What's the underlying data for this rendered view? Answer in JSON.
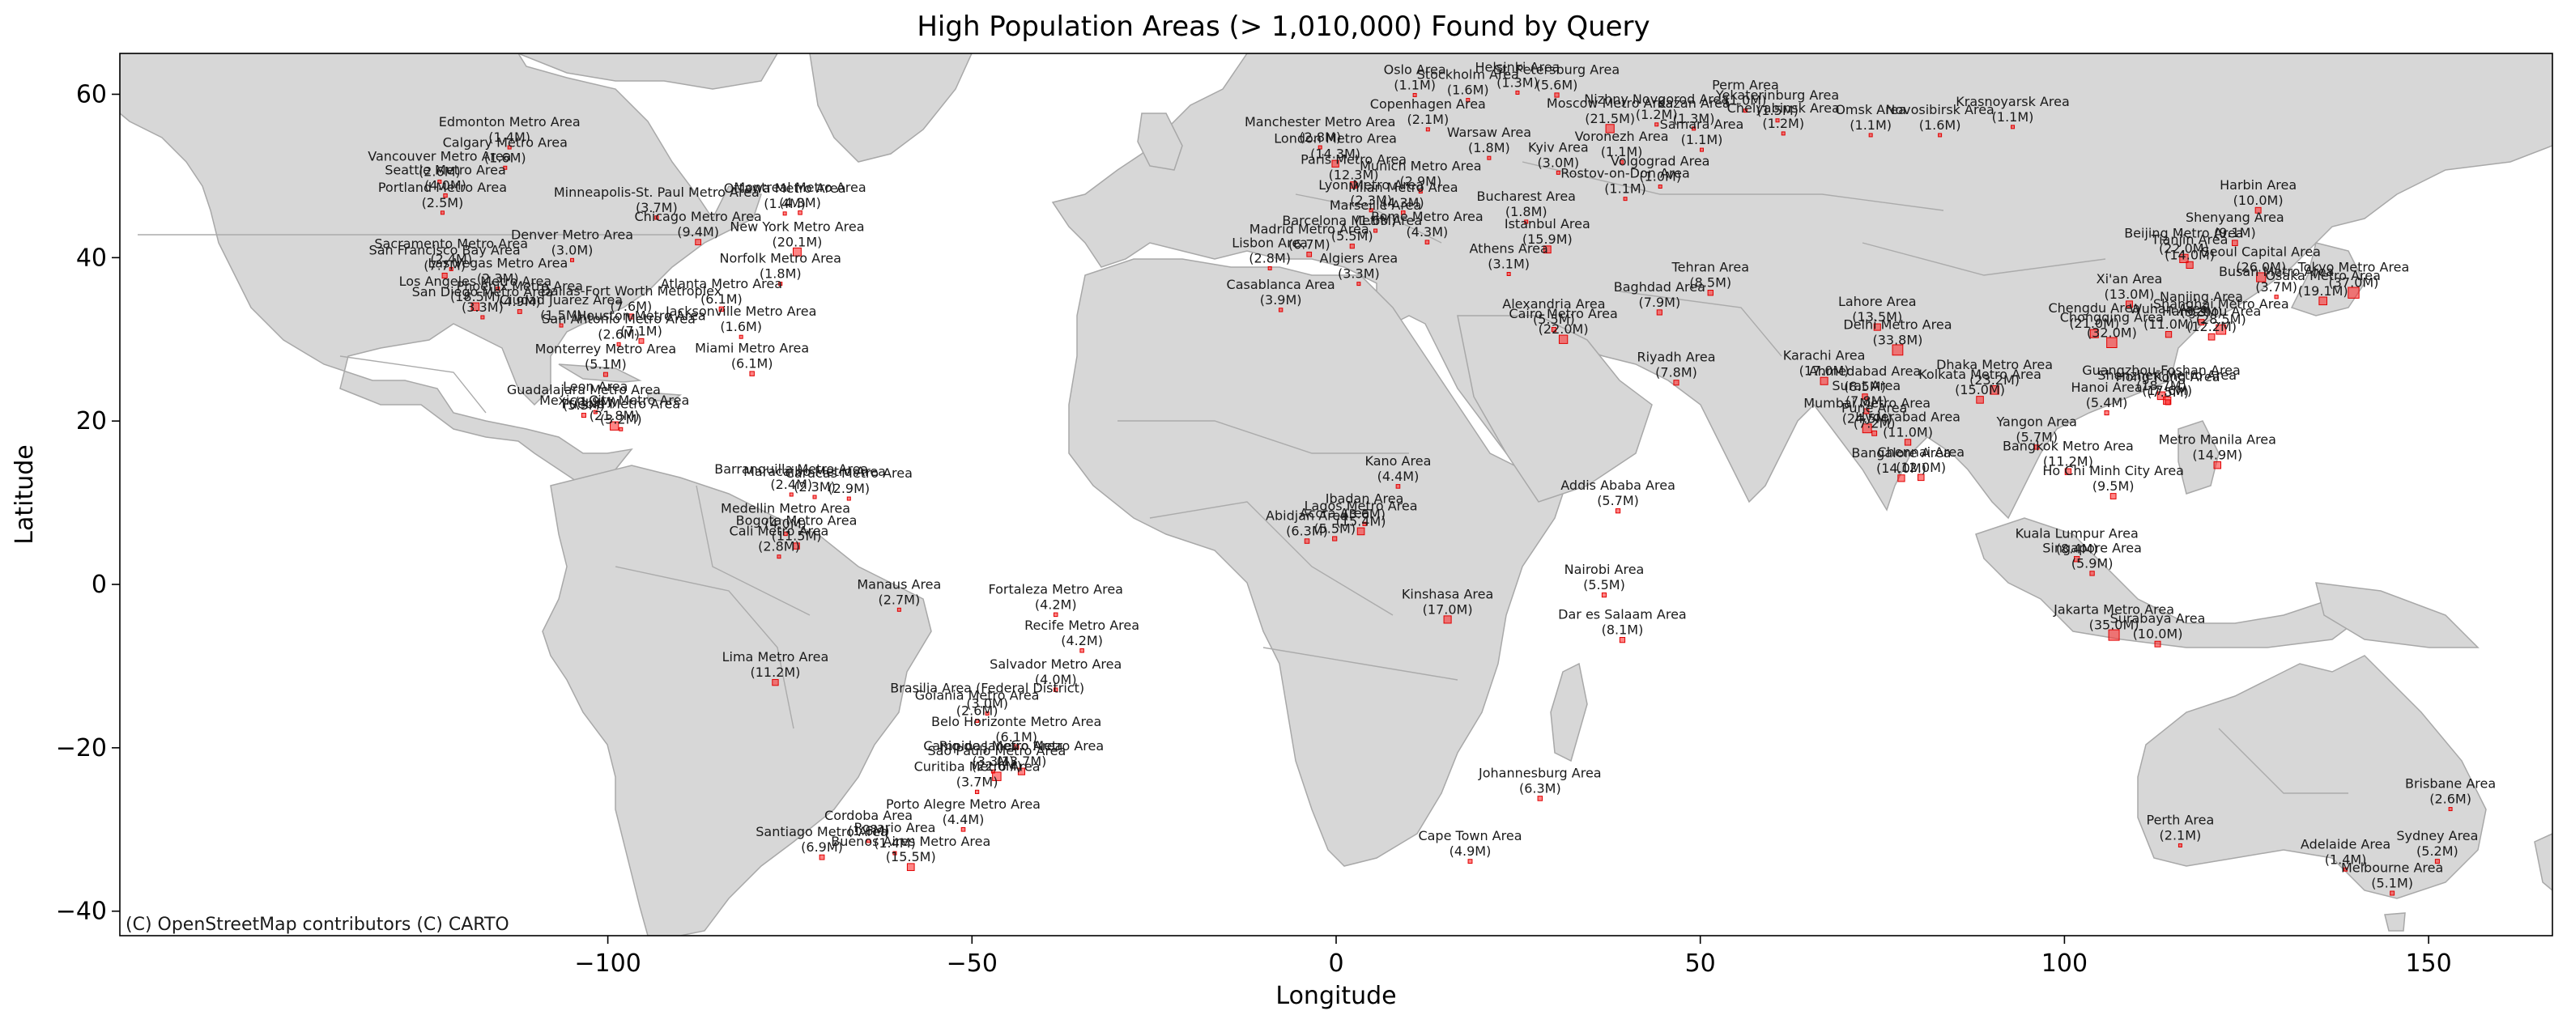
{
  "title": "High Population Areas (> 1,010,000) Found by Query",
  "xlabel": "Longitude",
  "ylabel": "Latitude",
  "attribution": "(C) OpenStreetMap contributors (C) CARTO",
  "xticks": [
    -100,
    -50,
    0,
    50,
    100,
    150
  ],
  "yticks": [
    -40,
    -20,
    0,
    20,
    40,
    60
  ],
  "xlim": [
    -167,
    167
  ],
  "ylim": [
    -43,
    65
  ],
  "colors": {
    "point": "#ff2020",
    "land": "#d7d7d7",
    "ocean": "#ffffff"
  },
  "chart_data": {
    "type": "scatter",
    "points": [
      {
        "name": "Edmonton Metro Area",
        "pop": "(1.4M)",
        "lon": -113.5,
        "lat": 53.5
      },
      {
        "name": "Calgary Metro Area",
        "pop": "(1.6M)",
        "lon": -114.1,
        "lat": 51.0
      },
      {
        "name": "Vancouver Metro Area",
        "pop": "(2.6M)",
        "lon": -123.1,
        "lat": 49.3
      },
      {
        "name": "Seattle Metro Area",
        "pop": "(4.0M)",
        "lon": -122.3,
        "lat": 47.6
      },
      {
        "name": "Portland Metro Area",
        "pop": "(2.5M)",
        "lon": -122.7,
        "lat": 45.5
      },
      {
        "name": "Sacramento Metro Area",
        "pop": "(2.4M)",
        "lon": -121.5,
        "lat": 38.6
      },
      {
        "name": "San Francisco Bay Area",
        "pop": "(7.7M)",
        "lon": -122.4,
        "lat": 37.8
      },
      {
        "name": "Las Vegas Metro Area",
        "pop": "(2.3M)",
        "lon": -115.1,
        "lat": 36.2
      },
      {
        "name": "Los Angeles Metro Area",
        "pop": "(18.5M)",
        "lon": -118.2,
        "lat": 34.0
      },
      {
        "name": "San Diego Metro Area",
        "pop": "(3.3M)",
        "lon": -117.2,
        "lat": 32.7
      },
      {
        "name": "Phoenix Metro Area",
        "pop": "(4.9M)",
        "lon": -112.1,
        "lat": 33.4
      },
      {
        "name": "Ciudad Juarez Area",
        "pop": "(1.5M)",
        "lon": -106.4,
        "lat": 31.7
      },
      {
        "name": "Denver Metro Area",
        "pop": "(3.0M)",
        "lon": -104.9,
        "lat": 39.7
      },
      {
        "name": "Minneapolis-St. Paul Metro Area",
        "pop": "(3.7M)",
        "lon": -93.3,
        "lat": 44.9
      },
      {
        "name": "Dallas-Fort Worth Metroplex",
        "pop": "(7.6M)",
        "lon": -96.8,
        "lat": 32.8
      },
      {
        "name": "Houston Metro Area",
        "pop": "(7.1M)",
        "lon": -95.4,
        "lat": 29.8
      },
      {
        "name": "San Antonio Metro Area",
        "pop": "(2.6M)",
        "lon": -98.5,
        "lat": 29.4
      },
      {
        "name": "Chicago Metro Area",
        "pop": "(9.4M)",
        "lon": -87.6,
        "lat": 41.9
      },
      {
        "name": "Atlanta Metro Area",
        "pop": "(6.1M)",
        "lon": -84.4,
        "lat": 33.7
      },
      {
        "name": "Jacksonville Metro Area",
        "pop": "(1.6M)",
        "lon": -81.7,
        "lat": 30.3
      },
      {
        "name": "Miami Metro Area",
        "pop": "(6.1M)",
        "lon": -80.2,
        "lat": 25.8
      },
      {
        "name": "Ottawa Metro Area",
        "pop": "(1.4M)",
        "lon": -75.7,
        "lat": 45.4
      },
      {
        "name": "Montreal Metro Area",
        "pop": "(4.3M)",
        "lon": -73.6,
        "lat": 45.5
      },
      {
        "name": "New York Metro Area",
        "pop": "(20.1M)",
        "lon": -74.0,
        "lat": 40.7
      },
      {
        "name": "Norfolk Metro Area",
        "pop": "(1.8M)",
        "lon": -76.3,
        "lat": 36.8
      },
      {
        "name": "Monterrey Metro Area",
        "pop": "(5.1M)",
        "lon": -100.3,
        "lat": 25.7
      },
      {
        "name": "Guadalajara Metro Area",
        "pop": "(5.3M)",
        "lon": -103.3,
        "lat": 20.7
      },
      {
        "name": "Leon Area",
        "pop": "(1.9M)",
        "lon": -101.7,
        "lat": 21.1
      },
      {
        "name": "Mexico City Metro Area",
        "pop": "(21.8M)",
        "lon": -99.1,
        "lat": 19.4
      },
      {
        "name": "Puebla Metro Area",
        "pop": "(3.2M)",
        "lon": -98.2,
        "lat": 19.0
      },
      {
        "name": "Barranquilla Metro Area",
        "pop": "(2.4M)",
        "lon": -74.8,
        "lat": 11.0
      },
      {
        "name": "Maracaibo Metro Area",
        "pop": "(2.3M)",
        "lon": -71.6,
        "lat": 10.7
      },
      {
        "name": "Caracas Metro Area",
        "pop": "(2.9M)",
        "lon": -66.9,
        "lat": 10.5
      },
      {
        "name": "Medellin Metro Area",
        "pop": "(4.0M)",
        "lon": -75.6,
        "lat": 6.2
      },
      {
        "name": "Cali Metro Area",
        "pop": "(2.8M)",
        "lon": -76.5,
        "lat": 3.4
      },
      {
        "name": "Bogota Metro Area",
        "pop": "(11.5M)",
        "lon": -74.1,
        "lat": 4.7
      },
      {
        "name": "Manaus Area",
        "pop": "(2.7M)",
        "lon": -60.0,
        "lat": -3.1
      },
      {
        "name": "Fortaleza Metro Area",
        "pop": "(4.2M)",
        "lon": -38.5,
        "lat": -3.7
      },
      {
        "name": "Recife Metro Area",
        "pop": "(4.2M)",
        "lon": -34.9,
        "lat": -8.1
      },
      {
        "name": "Salvador Metro Area",
        "pop": "(4.0M)",
        "lon": -38.5,
        "lat": -12.9
      },
      {
        "name": "Lima Metro Area",
        "pop": "(11.2M)",
        "lon": -77.0,
        "lat": -12.0
      },
      {
        "name": "Brasilia Area (Federal District)",
        "pop": "(3.0M)",
        "lon": -47.9,
        "lat": -15.8
      },
      {
        "name": "Goiania Metro Area",
        "pop": "(2.6M)",
        "lon": -49.3,
        "lat": -16.7
      },
      {
        "name": "Belo Horizonte Metro Area",
        "pop": "(6.1M)",
        "lon": -43.9,
        "lat": -19.9
      },
      {
        "name": "Campinas Metro Area",
        "pop": "(3.3M)",
        "lon": -47.1,
        "lat": -22.9
      },
      {
        "name": "Rio de Janeiro Metro Area",
        "pop": "(13.7M)",
        "lon": -43.2,
        "lat": -22.9
      },
      {
        "name": "Sao Paulo Metro Area",
        "pop": "(22.6M)",
        "lon": -46.6,
        "lat": -23.5
      },
      {
        "name": "Curitiba Metro Area",
        "pop": "(3.7M)",
        "lon": -49.3,
        "lat": -25.4
      },
      {
        "name": "Porto Alegre Metro Area",
        "pop": "(4.4M)",
        "lon": -51.2,
        "lat": -30.0
      },
      {
        "name": "Cordoba Area",
        "pop": "(1.6M)",
        "lon": -64.2,
        "lat": -31.4
      },
      {
        "name": "Rosario Area",
        "pop": "(1.4M)",
        "lon": -60.6,
        "lat": -32.9
      },
      {
        "name": "Santiago Metro Area",
        "pop": "(6.9M)",
        "lon": -70.6,
        "lat": -33.4
      },
      {
        "name": "Buenos Aires Metro Area",
        "pop": "(15.5M)",
        "lon": -58.4,
        "lat": -34.6
      },
      {
        "name": "Oslo Area",
        "pop": "(1.1M)",
        "lon": 10.8,
        "lat": 59.9
      },
      {
        "name": "Stockholm Area",
        "pop": "(1.6M)",
        "lon": 18.1,
        "lat": 59.3
      },
      {
        "name": "Helsinki Area",
        "pop": "(1.3M)",
        "lon": 24.9,
        "lat": 60.2
      },
      {
        "name": "St. Petersburg Area",
        "pop": "(5.6M)",
        "lon": 30.3,
        "lat": 59.9
      },
      {
        "name": "Copenhagen Area",
        "pop": "(2.1M)",
        "lon": 12.6,
        "lat": 55.7
      },
      {
        "name": "Manchester Metro Area",
        "pop": "(2.8M)",
        "lon": -2.2,
        "lat": 53.5
      },
      {
        "name": "London Metro Area",
        "pop": "(14.3M)",
        "lon": -0.1,
        "lat": 51.5
      },
      {
        "name": "Paris Metro Area",
        "pop": "(12.3M)",
        "lon": 2.4,
        "lat": 48.9
      },
      {
        "name": "Warsaw Area",
        "pop": "(1.8M)",
        "lon": 21.0,
        "lat": 52.2
      },
      {
        "name": "Moscow Metro Area",
        "pop": "(21.5M)",
        "lon": 37.6,
        "lat": 55.8
      },
      {
        "name": "Nizhny Novgorod Area",
        "pop": "(1.2M)",
        "lon": 44.0,
        "lat": 56.3
      },
      {
        "name": "Kazan Area",
        "pop": "(1.3M)",
        "lon": 49.1,
        "lat": 55.8
      },
      {
        "name": "Perm Area",
        "pop": "(1.0M)",
        "lon": 56.2,
        "lat": 58.0
      },
      {
        "name": "Yekaterinburg Area",
        "pop": "(1.5M)",
        "lon": 60.6,
        "lat": 56.8
      },
      {
        "name": "Chelyabinsk Area",
        "pop": "(1.2M)",
        "lon": 61.4,
        "lat": 55.2
      },
      {
        "name": "Samara Area",
        "pop": "(1.1M)",
        "lon": 50.2,
        "lat": 53.2
      },
      {
        "name": "Omsk Area",
        "pop": "(1.1M)",
        "lon": 73.4,
        "lat": 55.0
      },
      {
        "name": "Novosibirsk Area",
        "pop": "(1.6M)",
        "lon": 82.9,
        "lat": 55.0
      },
      {
        "name": "Krasnoyarsk Area",
        "pop": "(1.1M)",
        "lon": 92.9,
        "lat": 56.0
      },
      {
        "name": "Kyiv Area",
        "pop": "(3.0M)",
        "lon": 30.5,
        "lat": 50.4
      },
      {
        "name": "Voronezh Area",
        "pop": "(1.1M)",
        "lon": 39.2,
        "lat": 51.7
      },
      {
        "name": "Volgograd Area",
        "pop": "(1.0M)",
        "lon": 44.5,
        "lat": 48.7
      },
      {
        "name": "Rostov-on-Don Area",
        "pop": "(1.1M)",
        "lon": 39.7,
        "lat": 47.2
      },
      {
        "name": "Lyon Metro Area",
        "pop": "(2.3M)",
        "lon": 4.8,
        "lat": 45.8
      },
      {
        "name": "Munich Metro Area",
        "pop": "(2.9M)",
        "lon": 11.6,
        "lat": 48.1
      },
      {
        "name": "Milan Metro Area",
        "pop": "(4.3M)",
        "lon": 9.2,
        "lat": 45.5
      },
      {
        "name": "Marseille Area",
        "pop": "(1.6M)",
        "lon": 5.4,
        "lat": 43.3
      },
      {
        "name": "Bucharest Area",
        "pop": "(1.8M)",
        "lon": 26.1,
        "lat": 44.4
      },
      {
        "name": "Rome Metro Area",
        "pop": "(4.3M)",
        "lon": 12.5,
        "lat": 41.9
      },
      {
        "name": "Barcelona Metro Area",
        "pop": "(5.5M)",
        "lon": 2.2,
        "lat": 41.4
      },
      {
        "name": "Madrid Metro Area",
        "pop": "(6.7M)",
        "lon": -3.7,
        "lat": 40.4
      },
      {
        "name": "Lisbon Area",
        "pop": "(2.8M)",
        "lon": -9.1,
        "lat": 38.7
      },
      {
        "name": "Algiers Area",
        "pop": "(3.3M)",
        "lon": 3.1,
        "lat": 36.8
      },
      {
        "name": "Athens Area",
        "pop": "(3.1M)",
        "lon": 23.7,
        "lat": 38.0
      },
      {
        "name": "Istanbul Area",
        "pop": "(15.9M)",
        "lon": 29.0,
        "lat": 41.0
      },
      {
        "name": "Casablanca Area",
        "pop": "(3.9M)",
        "lon": -7.6,
        "lat": 33.6
      },
      {
        "name": "Alexandria Area",
        "pop": "(5.5M)",
        "lon": 29.9,
        "lat": 31.2
      },
      {
        "name": "Cairo Metro Area",
        "pop": "(22.0M)",
        "lon": 31.2,
        "lat": 30.0
      },
      {
        "name": "Baghdad Area",
        "pop": "(7.9M)",
        "lon": 44.4,
        "lat": 33.3
      },
      {
        "name": "Tehran Area",
        "pop": "(8.5M)",
        "lon": 51.4,
        "lat": 35.7
      },
      {
        "name": "Riyadh Area",
        "pop": "(7.8M)",
        "lon": 46.7,
        "lat": 24.7
      },
      {
        "name": "Kano Area",
        "pop": "(4.4M)",
        "lon": 8.5,
        "lat": 12.0
      },
      {
        "name": "Ibadan Area",
        "pop": "(3.6M)",
        "lon": 3.9,
        "lat": 7.4
      },
      {
        "name": "Lagos Metro Area",
        "pop": "(15.4M)",
        "lon": 3.4,
        "lat": 6.5
      },
      {
        "name": "Abidjan Area",
        "pop": "(6.3M)",
        "lon": -4.0,
        "lat": 5.3
      },
      {
        "name": "Accra Area",
        "pop": "(5.5M)",
        "lon": -0.2,
        "lat": 5.6
      },
      {
        "name": "Addis Ababa Area",
        "pop": "(5.7M)",
        "lon": 38.7,
        "lat": 9.0
      },
      {
        "name": "Nairobi Area",
        "pop": "(5.5M)",
        "lon": 36.8,
        "lat": -1.3
      },
      {
        "name": "Kinshasa Area",
        "pop": "(17.0M)",
        "lon": 15.3,
        "lat": -4.3
      },
      {
        "name": "Dar es Salaam Area",
        "pop": "(8.1M)",
        "lon": 39.3,
        "lat": -6.8
      },
      {
        "name": "Johannesburg Area",
        "pop": "(6.3M)",
        "lon": 28.0,
        "lat": -26.2
      },
      {
        "name": "Cape Town Area",
        "pop": "(4.9M)",
        "lon": 18.4,
        "lat": -33.9
      },
      {
        "name": "Karachi Area",
        "pop": "(17.0M)",
        "lon": 67.0,
        "lat": 24.9
      },
      {
        "name": "Lahore Area",
        "pop": "(13.5M)",
        "lon": 74.3,
        "lat": 31.5
      },
      {
        "name": "Delhi Metro Area",
        "pop": "(33.8M)",
        "lon": 77.1,
        "lat": 28.7
      },
      {
        "name": "Ahmedabad Area",
        "pop": "(8.5M)",
        "lon": 72.6,
        "lat": 23.0
      },
      {
        "name": "Surat Area",
        "pop": "(7.8M)",
        "lon": 72.8,
        "lat": 21.2
      },
      {
        "name": "Mumbai Metro Area",
        "pop": "(24.5M)",
        "lon": 72.9,
        "lat": 19.1
      },
      {
        "name": "Pune Area",
        "pop": "(7.2M)",
        "lon": 73.9,
        "lat": 18.5
      },
      {
        "name": "Hyderabad Area",
        "pop": "(11.0M)",
        "lon": 78.5,
        "lat": 17.4
      },
      {
        "name": "Bangalore Area",
        "pop": "(14.0M)",
        "lon": 77.6,
        "lat": 13.0
      },
      {
        "name": "Chennai Area",
        "pop": "(12.0M)",
        "lon": 80.3,
        "lat": 13.1
      },
      {
        "name": "Dhaka Metro Area",
        "pop": "(23.2M)",
        "lon": 90.4,
        "lat": 23.8
      },
      {
        "name": "Kolkata Metro Area",
        "pop": "(15.0M)",
        "lon": 88.4,
        "lat": 22.6
      },
      {
        "name": "Yangon Area",
        "pop": "(5.7M)",
        "lon": 96.2,
        "lat": 16.8
      },
      {
        "name": "Bangkok Metro Area",
        "pop": "(11.2M)",
        "lon": 100.5,
        "lat": 13.8
      },
      {
        "name": "Ho Chi Minh City Area",
        "pop": "(9.5M)",
        "lon": 106.7,
        "lat": 10.8
      },
      {
        "name": "Hanoi Area",
        "pop": "(5.4M)",
        "lon": 105.8,
        "lat": 21.0
      },
      {
        "name": "Kuala Lumpur Area",
        "pop": "(8.4M)",
        "lon": 101.7,
        "lat": 3.1
      },
      {
        "name": "Singapore Area",
        "pop": "(5.9M)",
        "lon": 103.8,
        "lat": 1.35
      },
      {
        "name": "Jakarta Metro Area",
        "pop": "(35.0M)",
        "lon": 106.8,
        "lat": -6.2
      },
      {
        "name": "Surabaya Area",
        "pop": "(10.0M)",
        "lon": 112.8,
        "lat": -7.3
      },
      {
        "name": "Metro Manila Area",
        "pop": "(14.9M)",
        "lon": 121.0,
        "lat": 14.6
      },
      {
        "name": "Xi'an Area",
        "pop": "(13.0M)",
        "lon": 108.9,
        "lat": 34.3
      },
      {
        "name": "Chengdu Area",
        "pop": "(21.0M)",
        "lon": 104.1,
        "lat": 30.7
      },
      {
        "name": "Chongqing Area",
        "pop": "(32.0M)",
        "lon": 106.5,
        "lat": 29.6
      },
      {
        "name": "Wuhan Area",
        "pop": "(11.0M)",
        "lon": 114.3,
        "lat": 30.6
      },
      {
        "name": "Nanjing Area",
        "pop": "(9.3M)",
        "lon": 118.8,
        "lat": 32.1
      },
      {
        "name": "Shanghai Metro Area",
        "pop": "(28.5M)",
        "lon": 121.5,
        "lat": 31.2
      },
      {
        "name": "Hangzhou Area",
        "pop": "(12.2M)",
        "lon": 120.2,
        "lat": 30.3
      },
      {
        "name": "Guangzhou-Foshan Area",
        "pop": "(18.7M)",
        "lon": 113.3,
        "lat": 23.1
      },
      {
        "name": "Shenzhen Metro Area",
        "pop": "(17.6M)",
        "lon": 114.1,
        "lat": 22.5
      },
      {
        "name": "Hong Kong Area",
        "pop": "(7.5M)",
        "lon": 114.2,
        "lat": 22.3
      },
      {
        "name": "Beijing Metro Area",
        "pop": "(22.0M)",
        "lon": 116.4,
        "lat": 39.9
      },
      {
        "name": "Tianjin Area",
        "pop": "(14.0M)",
        "lon": 117.2,
        "lat": 39.1
      },
      {
        "name": "Shenyang Area",
        "pop": "(9.1M)",
        "lon": 123.4,
        "lat": 41.8
      },
      {
        "name": "Harbin Area",
        "pop": "(10.0M)",
        "lon": 126.6,
        "lat": 45.8
      },
      {
        "name": "Seoul Capital Area",
        "pop": "(26.0M)",
        "lon": 127.0,
        "lat": 37.6
      },
      {
        "name": "Busan Metro Area",
        "pop": "(3.7M)",
        "lon": 129.1,
        "lat": 35.2
      },
      {
        "name": "Osaka Metro Area",
        "pop": "(19.1M)",
        "lon": 135.5,
        "lat": 34.7
      },
      {
        "name": "Tokyo Metro Area",
        "pop": "(37.0M)",
        "lon": 139.7,
        "lat": 35.7
      },
      {
        "name": "Perth Area",
        "pop": "(2.1M)",
        "lon": 115.9,
        "lat": -31.95
      },
      {
        "name": "Adelaide Area",
        "pop": "(1.4M)",
        "lon": 138.6,
        "lat": -34.9
      },
      {
        "name": "Melbourne Area",
        "pop": "(5.1M)",
        "lon": 145.0,
        "lat": -37.8
      },
      {
        "name": "Sydney Area",
        "pop": "(5.2M)",
        "lon": 151.2,
        "lat": -33.9
      },
      {
        "name": "Brisbane Area",
        "pop": "(2.6M)",
        "lon": 153.0,
        "lat": -27.5
      }
    ]
  }
}
